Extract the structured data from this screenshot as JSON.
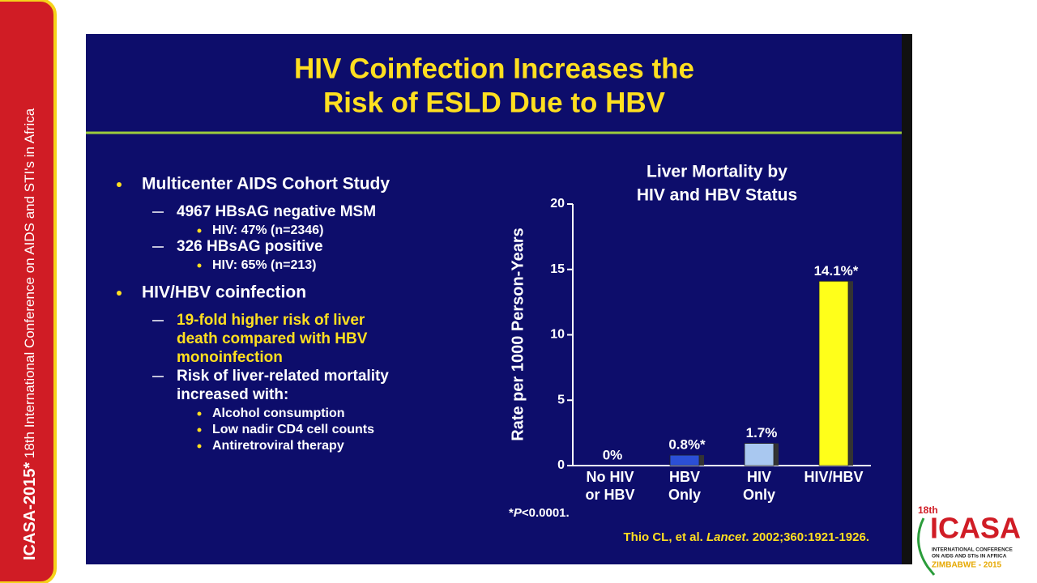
{
  "sidebar": {
    "brand": "ICASA-2015",
    "asterisk": "*",
    "text": " 18th International Conference on AIDS and STI's in Africa"
  },
  "slide": {
    "title": [
      "HIV Coinfection Increases the",
      "Risk of ESLD Due to HBV"
    ],
    "bullets": [
      {
        "level": 1,
        "text": "Multicenter AIDS Cohort Study"
      },
      {
        "level": 2,
        "text": "4967 HBsAG negative MSM"
      },
      {
        "level": 3,
        "text": "HIV: 47% (n=2346)"
      },
      {
        "level": 2,
        "text": "326 HBsAG positive"
      },
      {
        "level": 3,
        "text": "HIV: 65% (n=213)"
      },
      {
        "level": 1,
        "text": "HIV/HBV coinfection"
      },
      {
        "level": 2,
        "text": [
          "19-fold higher risk of liver",
          "death compared with HBV",
          "monoinfection"
        ],
        "highlight": true
      },
      {
        "level": 2,
        "text": [
          "Risk of liver-related mortality",
          "increased with:"
        ]
      },
      {
        "level": 3,
        "text": "Alcohol consumption"
      },
      {
        "level": 3,
        "text": "Low nadir CD4 cell counts"
      },
      {
        "level": 3,
        "text": "Antiretroviral therapy"
      }
    ],
    "footnote": [
      "*",
      "P",
      "<0.0001."
    ],
    "citation": [
      "Thio CL, et al. ",
      "Lancet",
      ". 2002;360:1921-1926."
    ]
  },
  "logo": {
    "edition": "18th",
    "name": "ICASA",
    "subtitle": [
      "INTERNATIONAL CONFERENCE",
      "ON AIDS AND STIs IN AFRICA"
    ],
    "place": "ZIMBABWE - 2015"
  },
  "chart_data": {
    "type": "bar",
    "title": [
      "Liver Mortality by",
      "HIV and HBV Status"
    ],
    "y_label": "Rate per 1000 Person-Years",
    "categories": [
      [
        "No HIV",
        "or HBV"
      ],
      [
        "HBV",
        "Only"
      ],
      [
        "HIV",
        "Only"
      ],
      [
        "HIV/HBV"
      ]
    ],
    "values": [
      0,
      0.8,
      1.7,
      14.1
    ],
    "value_labels": [
      "0%",
      "0.8%*",
      "1.7%",
      "14.1%*"
    ],
    "colors": [
      "#2b4fd6",
      "#2b4fd6",
      "#a9c8f0",
      "#ffff1a"
    ],
    "ylim": [
      0,
      20
    ],
    "yticks": [
      0,
      5,
      10,
      15,
      20
    ]
  }
}
